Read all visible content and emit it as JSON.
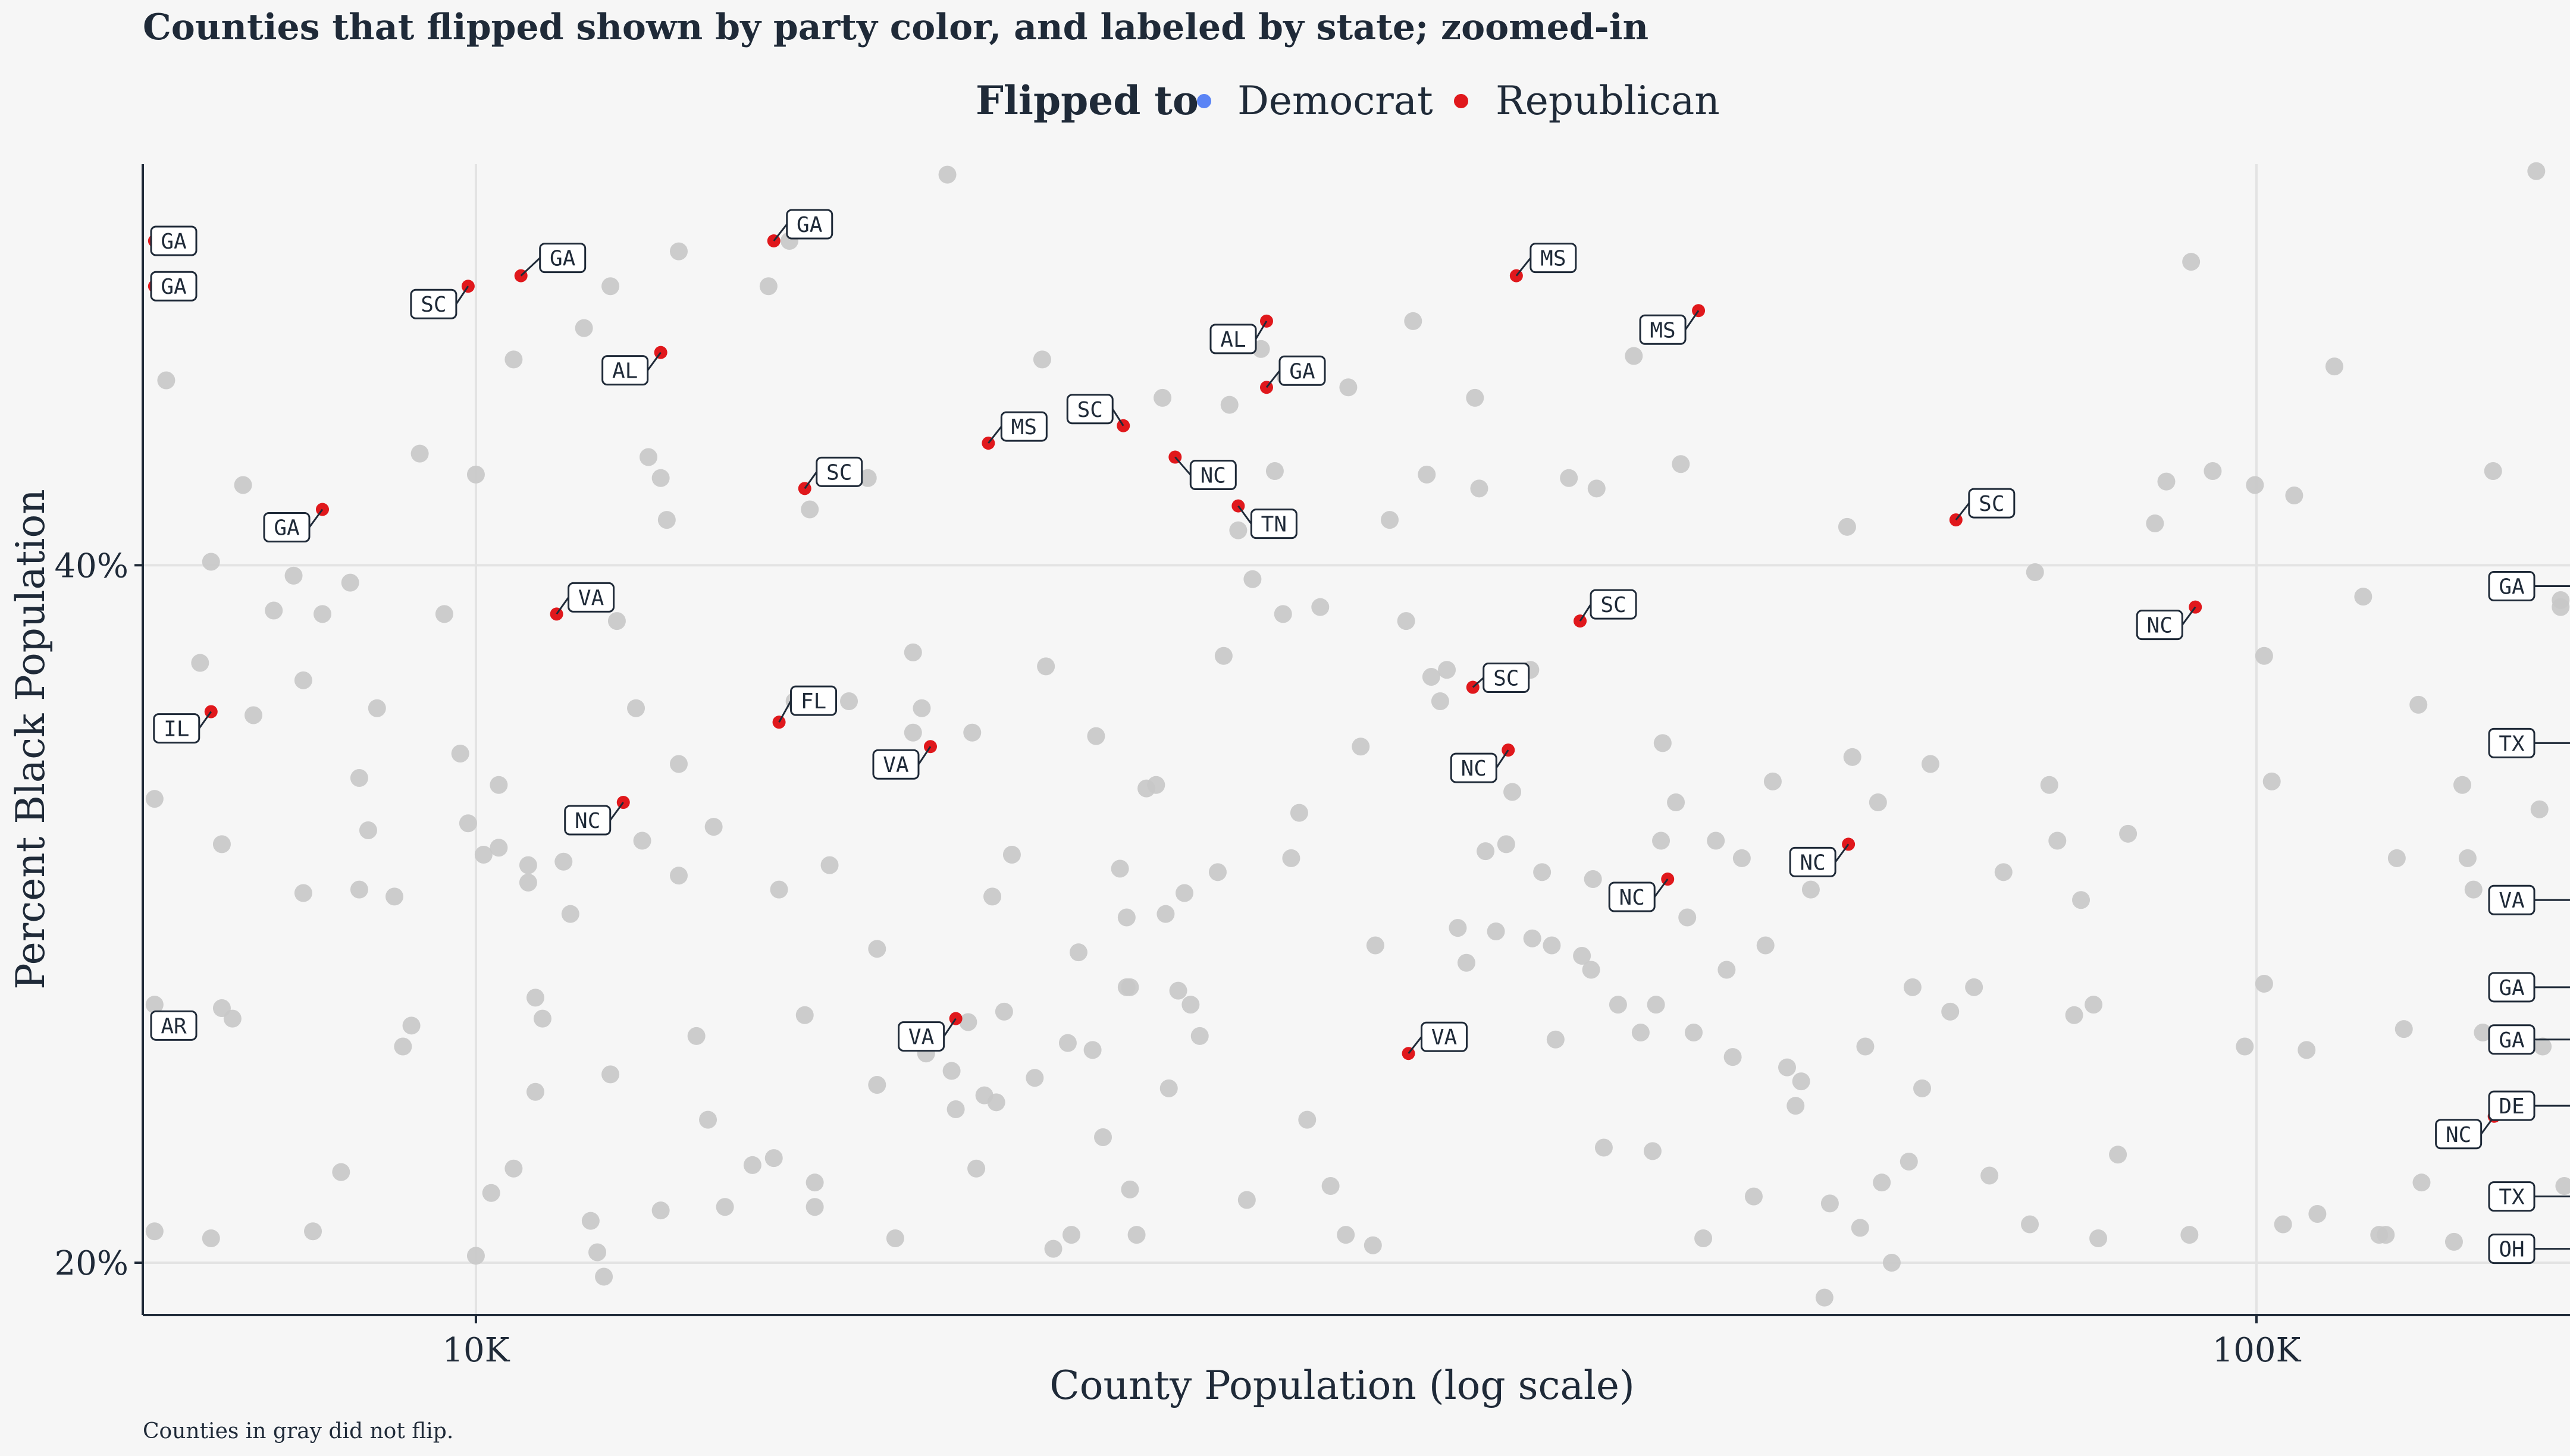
{
  "chart_data": {
    "type": "scatter",
    "title": "Counties that flipped shown by party color, and labeled by state; zoomed-in",
    "xlabel": "County Population (log scale)",
    "ylabel": "Percent Black Population",
    "caption": "Counties in gray did not flip.",
    "x_scale": "log",
    "xlim": [
      6500,
      150000
    ],
    "ylim": [
      18.5,
      51.5
    ],
    "x_ticks": [
      {
        "value": 10000,
        "label": "10K"
      },
      {
        "value": 100000,
        "label": "100K"
      }
    ],
    "y_ticks": [
      {
        "value": 20,
        "label": "20%"
      },
      {
        "value": 40,
        "label": "40%"
      }
    ],
    "grid": true,
    "legend": {
      "title": "Flipped to",
      "position": "top",
      "entries": [
        {
          "name": "Democrat",
          "color": "#5b84f5"
        },
        {
          "name": "Republican",
          "color": "#e0181c"
        }
      ]
    },
    "colors": {
      "gray": "#c8c8c8",
      "republican": "#e0181c",
      "democrat": "#5b84f5",
      "background": "#f6f6f6"
    },
    "flipped_republican": [
      {
        "x": 9900,
        "y": 48.0,
        "label": "SC"
      },
      {
        "x": 10600,
        "y": 48.3,
        "label": "GA"
      },
      {
        "x": 14700,
        "y": 49.3,
        "label": "GA"
      },
      {
        "x": 6600,
        "y": 49.3,
        "label": "GA"
      },
      {
        "x": 6600,
        "y": 48.0,
        "label": "GA"
      },
      {
        "x": 12700,
        "y": 46.1,
        "label": "AL"
      },
      {
        "x": 8200,
        "y": 41.6,
        "label": "GA"
      },
      {
        "x": 15300,
        "y": 42.2,
        "label": "SC"
      },
      {
        "x": 19400,
        "y": 43.5,
        "label": "MS"
      },
      {
        "x": 23100,
        "y": 44.0,
        "label": "SC"
      },
      {
        "x": 24700,
        "y": 43.1,
        "label": "NC"
      },
      {
        "x": 26800,
        "y": 41.7,
        "label": "TN"
      },
      {
        "x": 27800,
        "y": 47.0,
        "label": "AL"
      },
      {
        "x": 27800,
        "y": 45.1,
        "label": "GA"
      },
      {
        "x": 38400,
        "y": 48.3,
        "label": "MS"
      },
      {
        "x": 48600,
        "y": 47.3,
        "label": "MS"
      },
      {
        "x": 11100,
        "y": 38.6,
        "label": "VA"
      },
      {
        "x": 14800,
        "y": 35.5,
        "label": "FL"
      },
      {
        "x": 7100,
        "y": 35.8,
        "label": "IL"
      },
      {
        "x": 18000,
        "y": 34.8,
        "label": "VA"
      },
      {
        "x": 12100,
        "y": 33.2,
        "label": "NC"
      },
      {
        "x": 36300,
        "y": 36.5,
        "label": "SC"
      },
      {
        "x": 41700,
        "y": 38.4,
        "label": "SC"
      },
      {
        "x": 38000,
        "y": 34.7,
        "label": "NC"
      },
      {
        "x": 67800,
        "y": 41.3,
        "label": "SC"
      },
      {
        "x": 92400,
        "y": 38.8,
        "label": "NC"
      },
      {
        "x": 6800,
        "y": 26.8,
        "label": "AR"
      },
      {
        "x": 18600,
        "y": 27.0,
        "label": "VA"
      },
      {
        "x": 33400,
        "y": 26.0,
        "label": "VA"
      },
      {
        "x": 59000,
        "y": 32.0,
        "label": "NC"
      },
      {
        "x": 46700,
        "y": 31.0,
        "label": "NC"
      },
      {
        "x": 136000,
        "y": 24.2,
        "label": "NC"
      },
      {
        "x": 164000,
        "y": 39.4,
        "label": "GA"
      },
      {
        "x": 164000,
        "y": 34.9,
        "label": "TX"
      },
      {
        "x": 164000,
        "y": 30.4,
        "label": "VA"
      },
      {
        "x": 164000,
        "y": 27.9,
        "label": "GA"
      },
      {
        "x": 164000,
        "y": 26.4,
        "label": "GA"
      },
      {
        "x": 164000,
        "y": 24.5,
        "label": "DE"
      },
      {
        "x": 164000,
        "y": 21.9,
        "label": "TX"
      },
      {
        "x": 164000,
        "y": 20.4,
        "label": "OH"
      }
    ],
    "flipped_democrat": [],
    "not_flipped": [
      [
        6600,
        20.9
      ],
      [
        6600,
        33.3
      ],
      [
        6600,
        27.4
      ],
      [
        6700,
        45.3
      ],
      [
        6800,
        26.9
      ],
      [
        7000,
        37.2
      ],
      [
        7100,
        20.7
      ],
      [
        7100,
        40.1
      ],
      [
        7200,
        32.0
      ],
      [
        7200,
        27.3
      ],
      [
        7300,
        27.0
      ],
      [
        7400,
        42.3
      ],
      [
        7500,
        35.7
      ],
      [
        7700,
        38.7
      ],
      [
        7900,
        39.7
      ],
      [
        8000,
        36.7
      ],
      [
        8000,
        30.6
      ],
      [
        8100,
        20.9
      ],
      [
        8200,
        38.6
      ],
      [
        8400,
        22.6
      ],
      [
        8500,
        39.5
      ],
      [
        8600,
        33.9
      ],
      [
        8600,
        30.7
      ],
      [
        8700,
        32.4
      ],
      [
        8800,
        35.9
      ],
      [
        9000,
        30.5
      ],
      [
        9100,
        26.2
      ],
      [
        9200,
        26.8
      ],
      [
        9300,
        43.2
      ],
      [
        9600,
        38.6
      ],
      [
        9800,
        34.6
      ],
      [
        9900,
        32.6
      ],
      [
        10000,
        20.2
      ],
      [
        10000,
        42.6
      ],
      [
        10100,
        31.7
      ],
      [
        10200,
        22.0
      ],
      [
        10300,
        31.9
      ],
      [
        10300,
        33.7
      ],
      [
        10500,
        22.7
      ],
      [
        10500,
        45.9
      ],
      [
        10700,
        31.4
      ],
      [
        10700,
        30.9
      ],
      [
        10800,
        27.6
      ],
      [
        10800,
        24.9
      ],
      [
        10900,
        27.0
      ],
      [
        11200,
        31.5
      ],
      [
        11300,
        30.0
      ],
      [
        11500,
        46.8
      ],
      [
        11600,
        21.2
      ],
      [
        11700,
        20.3
      ],
      [
        11800,
        19.6
      ],
      [
        11900,
        48.0
      ],
      [
        11900,
        25.4
      ],
      [
        12000,
        38.4
      ],
      [
        12300,
        35.9
      ],
      [
        12400,
        32.1
      ],
      [
        12500,
        43.1
      ],
      [
        12700,
        42.5
      ],
      [
        12700,
        21.5
      ],
      [
        12800,
        41.3
      ],
      [
        13000,
        31.1
      ],
      [
        13000,
        49.0
      ],
      [
        13000,
        34.3
      ],
      [
        13300,
        26.5
      ],
      [
        13600,
        32.5
      ],
      [
        13500,
        24.1
      ],
      [
        13800,
        21.6
      ],
      [
        14300,
        22.8
      ],
      [
        14600,
        48.0
      ],
      [
        14700,
        23.0
      ],
      [
        14800,
        30.7
      ],
      [
        15000,
        49.3
      ],
      [
        15100,
        36.1
      ],
      [
        15300,
        27.1
      ],
      [
        15400,
        41.6
      ],
      [
        15500,
        21.6
      ],
      [
        15500,
        22.3
      ],
      [
        15800,
        31.4
      ],
      [
        16200,
        36.1
      ],
      [
        16600,
        42.5
      ],
      [
        16800,
        29.0
      ],
      [
        16800,
        25.1
      ],
      [
        17200,
        20.7
      ],
      [
        17600,
        37.5
      ],
      [
        17600,
        35.2
      ],
      [
        17800,
        35.9
      ],
      [
        17900,
        26.0
      ],
      [
        18400,
        51.2
      ],
      [
        18500,
        25.5
      ],
      [
        18600,
        24.4
      ],
      [
        18900,
        26.9
      ],
      [
        19000,
        35.2
      ],
      [
        19100,
        22.7
      ],
      [
        19300,
        24.8
      ],
      [
        19500,
        30.5
      ],
      [
        19600,
        24.6
      ],
      [
        19800,
        27.2
      ],
      [
        20000,
        31.7
      ],
      [
        20600,
        25.3
      ],
      [
        20800,
        45.9
      ],
      [
        20900,
        37.1
      ],
      [
        21100,
        20.4
      ],
      [
        21500,
        26.3
      ],
      [
        21600,
        20.8
      ],
      [
        21800,
        28.9
      ],
      [
        22200,
        26.1
      ],
      [
        22300,
        35.1
      ],
      [
        22500,
        23.6
      ],
      [
        23000,
        31.3
      ],
      [
        23200,
        27.9
      ],
      [
        23200,
        29.9
      ],
      [
        23300,
        27.9
      ],
      [
        23300,
        22.1
      ],
      [
        23500,
        20.8
      ],
      [
        23800,
        33.6
      ],
      [
        24100,
        33.7
      ],
      [
        24300,
        44.8
      ],
      [
        24400,
        30.0
      ],
      [
        24500,
        25.0
      ],
      [
        24800,
        27.8
      ],
      [
        25000,
        30.6
      ],
      [
        25200,
        27.4
      ],
      [
        25500,
        26.5
      ],
      [
        26100,
        31.2
      ],
      [
        26300,
        37.4
      ],
      [
        26500,
        44.6
      ],
      [
        26800,
        41.0
      ],
      [
        27100,
        21.8
      ],
      [
        27300,
        39.6
      ],
      [
        27600,
        46.2
      ],
      [
        28100,
        42.7
      ],
      [
        28400,
        38.6
      ],
      [
        28500,
        45.4
      ],
      [
        28700,
        31.6
      ],
      [
        29000,
        32.9
      ],
      [
        29300,
        24.1
      ],
      [
        29800,
        38.8
      ],
      [
        30200,
        22.2
      ],
      [
        30800,
        20.8
      ],
      [
        30900,
        45.1
      ],
      [
        31400,
        34.8
      ],
      [
        31900,
        20.5
      ],
      [
        32000,
        29.1
      ],
      [
        32600,
        41.3
      ],
      [
        33300,
        38.4
      ],
      [
        33600,
        47.0
      ],
      [
        34200,
        42.6
      ],
      [
        34400,
        36.8
      ],
      [
        34800,
        36.1
      ],
      [
        35100,
        37.0
      ],
      [
        35600,
        29.6
      ],
      [
        36000,
        28.6
      ],
      [
        36400,
        44.8
      ],
      [
        36600,
        42.2
      ],
      [
        36900,
        31.8
      ],
      [
        37400,
        29.5
      ],
      [
        37900,
        32.0
      ],
      [
        38200,
        33.5
      ],
      [
        39100,
        37.0
      ],
      [
        39200,
        29.3
      ],
      [
        39700,
        31.2
      ],
      [
        40200,
        29.1
      ],
      [
        40400,
        26.4
      ],
      [
        41100,
        42.5
      ],
      [
        41800,
        28.8
      ],
      [
        42300,
        28.4
      ],
      [
        42400,
        31.0
      ],
      [
        42600,
        42.2
      ],
      [
        43000,
        23.3
      ],
      [
        43800,
        27.4
      ],
      [
        44700,
        46.0
      ],
      [
        45100,
        26.6
      ],
      [
        45800,
        23.2
      ],
      [
        46000,
        27.4
      ],
      [
        46300,
        32.1
      ],
      [
        46400,
        34.9
      ],
      [
        47200,
        33.2
      ],
      [
        47500,
        42.9
      ],
      [
        47900,
        29.9
      ],
      [
        48300,
        26.6
      ],
      [
        48900,
        20.7
      ],
      [
        49700,
        32.1
      ],
      [
        50400,
        28.4
      ],
      [
        50800,
        25.9
      ],
      [
        51400,
        31.6
      ],
      [
        52200,
        21.9
      ],
      [
        53000,
        29.1
      ],
      [
        53500,
        33.8
      ],
      [
        54500,
        25.6
      ],
      [
        55100,
        24.5
      ],
      [
        55500,
        25.2
      ],
      [
        56200,
        30.7
      ],
      [
        57200,
        19.0
      ],
      [
        57600,
        21.7
      ],
      [
        58900,
        41.1
      ],
      [
        59300,
        34.5
      ],
      [
        59900,
        21.0
      ],
      [
        60300,
        26.2
      ],
      [
        61300,
        33.2
      ],
      [
        61600,
        22.3
      ],
      [
        62400,
        20.0
      ],
      [
        63800,
        22.9
      ],
      [
        64100,
        27.9
      ],
      [
        64900,
        25.0
      ],
      [
        65600,
        34.3
      ],
      [
        67300,
        27.2
      ],
      [
        69400,
        27.9
      ],
      [
        70800,
        22.5
      ],
      [
        72100,
        31.2
      ],
      [
        74600,
        21.1
      ],
      [
        75100,
        39.8
      ],
      [
        76500,
        33.7
      ],
      [
        77300,
        32.1
      ],
      [
        79000,
        27.1
      ],
      [
        79700,
        30.4
      ],
      [
        81000,
        27.4
      ],
      [
        81500,
        20.7
      ],
      [
        83600,
        23.1
      ],
      [
        84700,
        32.3
      ],
      [
        87700,
        41.2
      ],
      [
        89000,
        42.4
      ],
      [
        91700,
        20.8
      ],
      [
        91900,
        48.7
      ],
      [
        94500,
        42.7
      ],
      [
        98500,
        26.2
      ],
      [
        99800,
        42.3
      ],
      [
        101000,
        28.0
      ],
      [
        101000,
        37.4
      ],
      [
        102000,
        33.8
      ],
      [
        103500,
        21.1
      ],
      [
        105000,
        42.0
      ],
      [
        106700,
        26.1
      ],
      [
        108200,
        21.4
      ],
      [
        110600,
        45.7
      ],
      [
        114800,
        39.1
      ],
      [
        117200,
        20.8
      ],
      [
        118200,
        20.8
      ],
      [
        119900,
        31.6
      ],
      [
        121000,
        26.7
      ],
      [
        123300,
        36.0
      ],
      [
        123800,
        22.3
      ],
      [
        129100,
        20.6
      ],
      [
        130500,
        33.7
      ],
      [
        131400,
        31.6
      ],
      [
        132400,
        30.7
      ],
      [
        134000,
        26.6
      ],
      [
        135800,
        42.7
      ],
      [
        143600,
        51.3
      ],
      [
        144200,
        33.0
      ],
      [
        144800,
        26.2
      ],
      [
        148200,
        39.0
      ],
      [
        148200,
        38.8
      ],
      [
        148900,
        22.2
      ],
      [
        153800,
        24.2
      ]
    ]
  }
}
